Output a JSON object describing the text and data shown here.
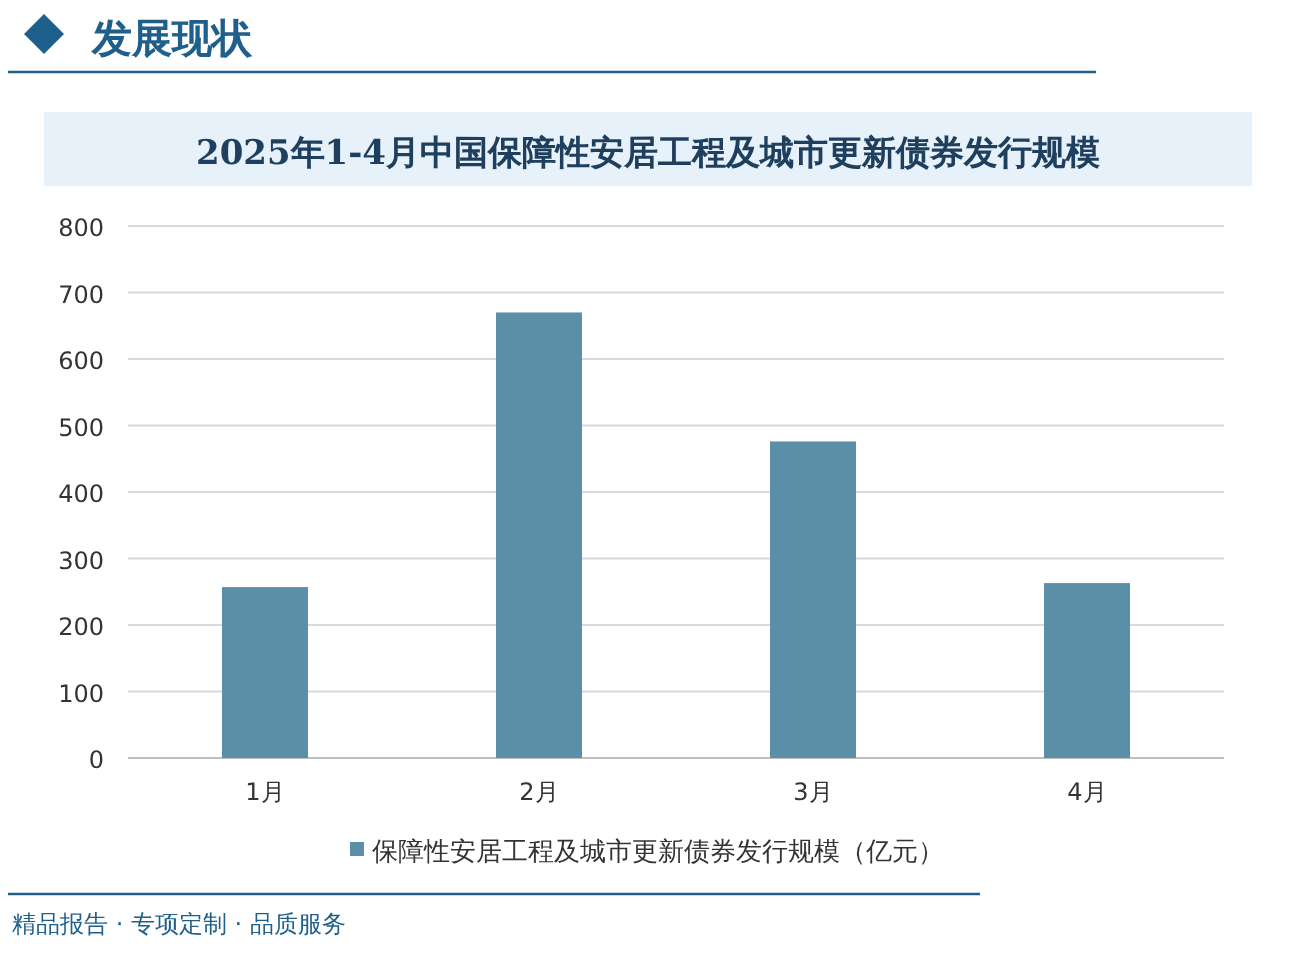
{
  "chart_data": {
    "type": "bar",
    "title": "2025年1-4月中国保障性安居工程及城市更新债券发行规模",
    "categories": [
      "1月",
      "2月",
      "3月",
      "4月"
    ],
    "series": [
      {
        "name": "保障性安居工程及城市更新债券发行规模（亿元）",
        "color": "#5b8fa8",
        "values": [
          257,
          670,
          476,
          263
        ]
      }
    ],
    "ylim": [
      0,
      800
    ],
    "yticks": [
      0,
      100,
      200,
      300,
      400,
      500,
      600,
      700,
      800
    ],
    "grid": "y",
    "legend": "bottom",
    "annotations": [
      "发展现状",
      "精品报告 · 专项定制 · 品质服务"
    ]
  }
}
